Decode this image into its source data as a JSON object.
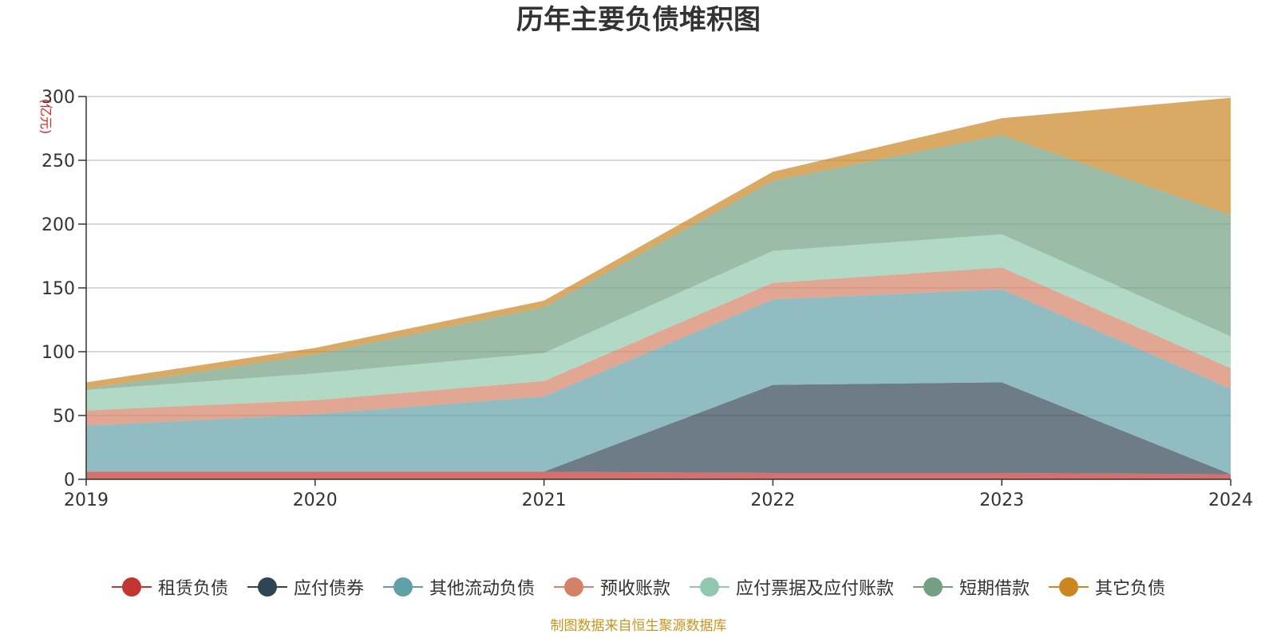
{
  "title": "历年主要负债堆积图",
  "source_note": "制图数据来自恒生聚源数据库",
  "chart_data": {
    "type": "area",
    "stacked": true,
    "title": "历年主要负债堆积图",
    "unit_label": "(亿元)",
    "x": [
      "2019",
      "2020",
      "2021",
      "2022",
      "2023",
      "2024"
    ],
    "ylim": [
      0,
      300
    ],
    "yticks": [
      0,
      50,
      100,
      150,
      200,
      250,
      300
    ],
    "grid": true,
    "legend_position": "bottom",
    "series": [
      {
        "name": "租赁负债",
        "color": "#c23531",
        "values": [
          6,
          6,
          6,
          5,
          5,
          4
        ]
      },
      {
        "name": "应付债券",
        "color": "#2f4554",
        "values": [
          0,
          0,
          0,
          69,
          71,
          0
        ]
      },
      {
        "name": "其他流动负债",
        "color": "#61a0a8",
        "values": [
          36,
          45,
          59,
          67,
          73,
          67
        ]
      },
      {
        "name": "预收账款",
        "color": "#d48265",
        "values": [
          12,
          11,
          12,
          13,
          17,
          16
        ]
      },
      {
        "name": "应付票据及应付账款",
        "color": "#91c7ae",
        "values": [
          16,
          21,
          22,
          25,
          26,
          25
        ]
      },
      {
        "name": "短期借款",
        "color": "#749f83",
        "values": [
          1,
          15,
          36,
          55,
          78,
          95
        ]
      },
      {
        "name": "其它负债",
        "color": "#ca8622",
        "values": [
          5,
          5,
          5,
          7,
          13,
          92
        ]
      }
    ]
  }
}
